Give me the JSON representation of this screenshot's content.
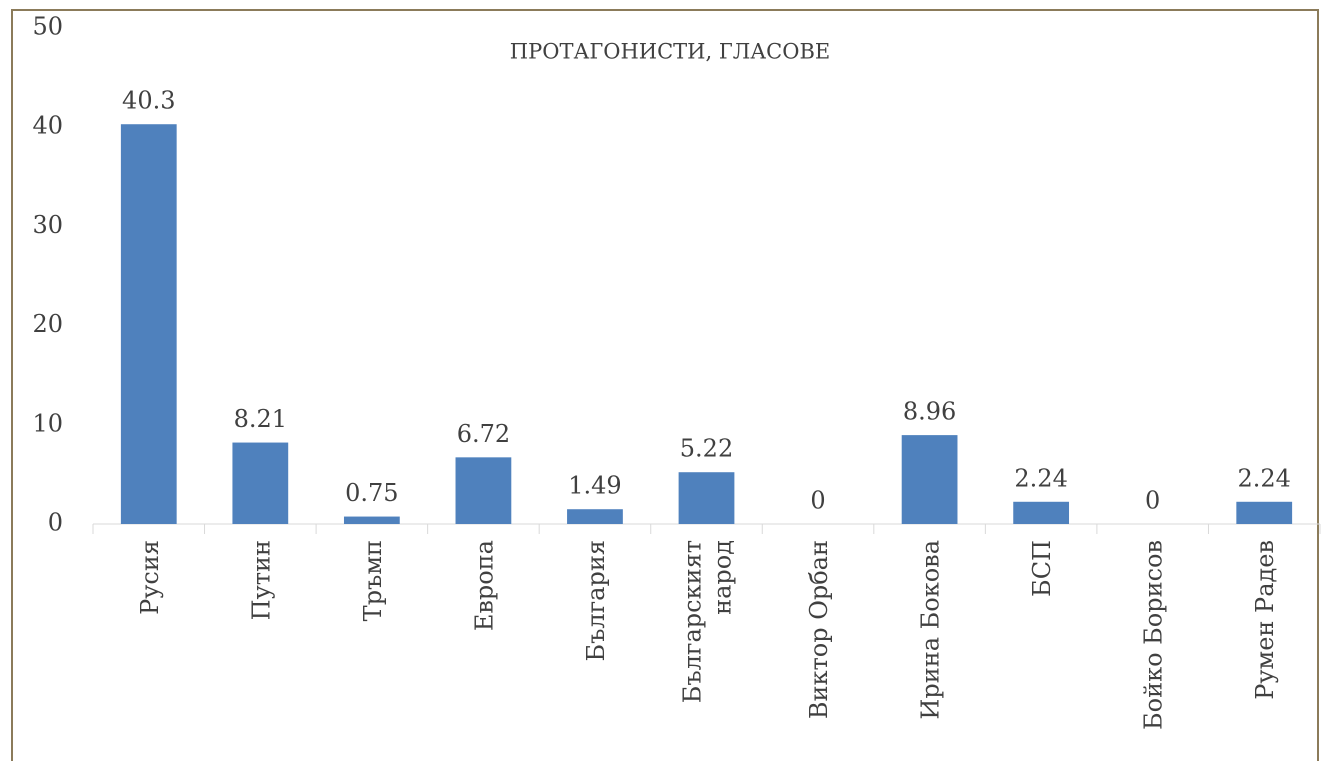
{
  "chart_data": {
    "type": "bar",
    "title": "ПРОТАГОНИСТИ, ГЛАСОВЕ",
    "categories": [
      "Русия",
      "Путин",
      "Тръмп",
      "Европа",
      "България",
      "Българският народ",
      "Виктор Орбан",
      "Ирина Бокова",
      "БСП",
      "Бойко Борисов",
      "Румен Радев"
    ],
    "values": [
      40.3,
      8.21,
      0.75,
      6.72,
      1.49,
      5.22,
      0,
      8.96,
      2.24,
      0,
      2.24
    ],
    "color": "#4f81bd",
    "ylim": [
      0,
      50
    ],
    "yticks": [
      0,
      10,
      20,
      30,
      40,
      50
    ],
    "grid": false
  }
}
